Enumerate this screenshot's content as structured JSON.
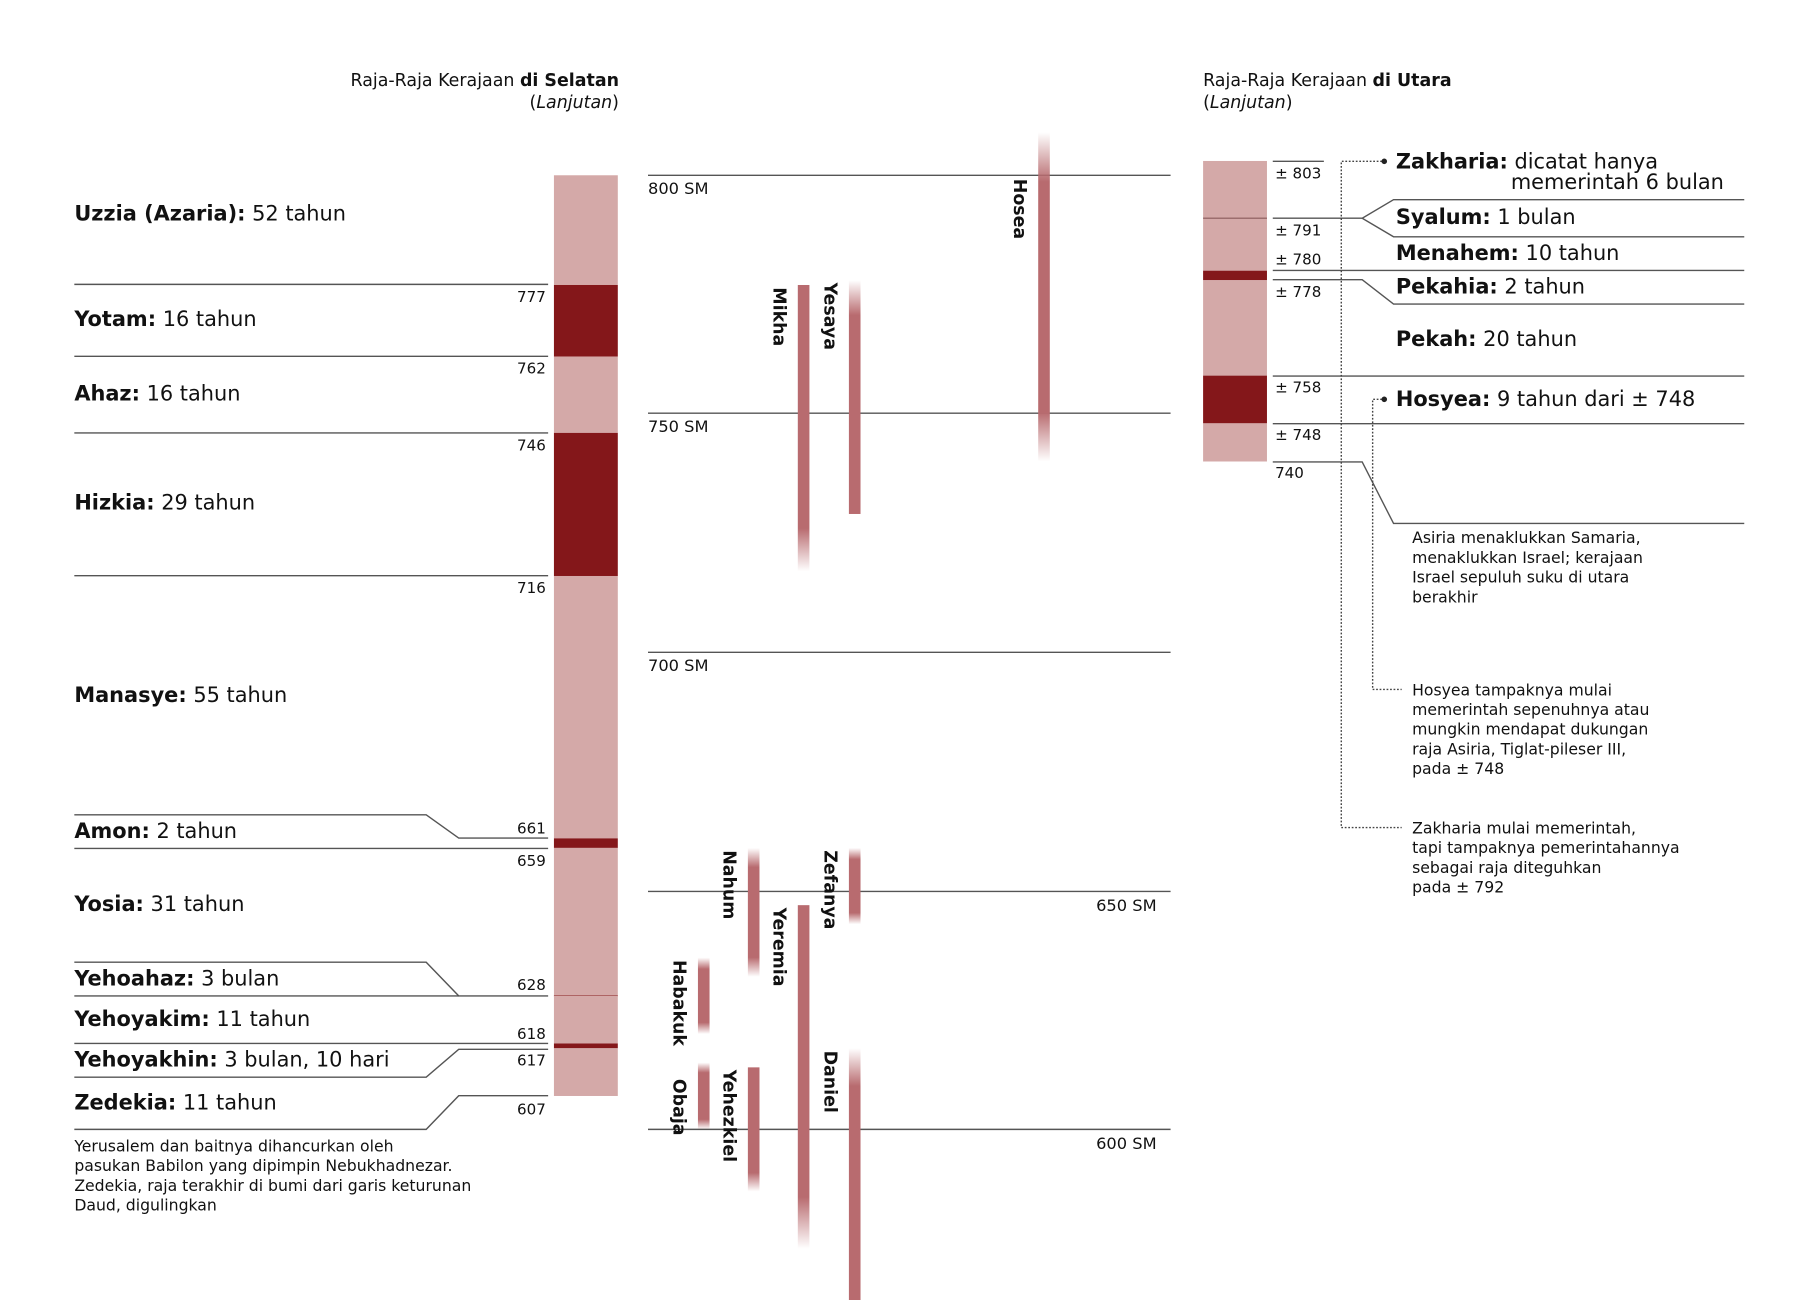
{
  "colors": {
    "light": "#d4a9a8",
    "dark": "#84171a",
    "prophet": "#b86b6f",
    "line": "#555555"
  },
  "south": {
    "title_plain": "Raja-Raja Kerajaan ",
    "title_bold": "di Selatan",
    "subtitle_open": "(",
    "subtitle_italic": "Lanjutan",
    "subtitle_close": ")",
    "kings": [
      {
        "name": "Uzzia (Azaria):",
        "reign": " 52 tahun",
        "start": 800,
        "end": 777,
        "shade": "light"
      },
      {
        "name": "Yotam:",
        "reign": " 16 tahun",
        "start": 777,
        "end": 762,
        "shade": "dark"
      },
      {
        "name": "Ahaz:",
        "reign": " 16 tahun",
        "start": 762,
        "end": 746,
        "shade": "light"
      },
      {
        "name": "Hizkia:",
        "reign": " 29 tahun",
        "start": 746,
        "end": 716,
        "shade": "dark"
      },
      {
        "name": "Manasye:",
        "reign": " 55 tahun",
        "start": 716,
        "end": 661,
        "shade": "light"
      },
      {
        "name": "Amon:",
        "reign": " 2 tahun",
        "start": 661,
        "end": 659,
        "shade": "dark"
      },
      {
        "name": "Yosia:",
        "reign": " 31 tahun",
        "start": 659,
        "end": 628,
        "shade": "light"
      },
      {
        "name": "Yehoahaz:",
        "reign": " 3 bulan",
        "start": 628,
        "end": 628,
        "shade": "dark"
      },
      {
        "name": "Yehoyakim:",
        "reign": " 11 tahun",
        "start": 628,
        "end": 618,
        "shade": "light"
      },
      {
        "name": "Yehoyakhin:",
        "reign": " 3 bulan, 10 hari",
        "start": 618,
        "end": 617,
        "shade": "dark"
      },
      {
        "name": "Zedekia:",
        "reign": " 11 tahun",
        "start": 617,
        "end": 607,
        "shade": "light"
      }
    ],
    "year_labels": [
      "777",
      "762",
      "746",
      "716",
      "661",
      "659",
      "628",
      "618",
      "617",
      "607"
    ],
    "footnote": [
      "Yerusalem dan baitnya dihancurkan oleh",
      "pasukan Babilon yang dipimpin Nebukhadnezar.",
      "Zedekia, raja terakhir di bumi dari garis keturunan",
      "Daud, digulingkan"
    ]
  },
  "axis": {
    "labels": [
      "800 SM",
      "750 SM",
      "700 SM",
      "650 SM",
      "600 SM"
    ]
  },
  "chart_data": {
    "type": "timeline",
    "unit": "SM",
    "prophets": [
      {
        "name": "Hosea",
        "start": 809,
        "end": 740,
        "fade": "both"
      },
      {
        "name": "Mikha",
        "start": 777,
        "end": 717,
        "fade": "bottom"
      },
      {
        "name": "Yesaya",
        "start": 778,
        "end": 729,
        "fade": "top"
      },
      {
        "name": "Nahum",
        "start": 659,
        "end": 632,
        "fade": "both"
      },
      {
        "name": "Zefanya",
        "start": 659,
        "end": 643,
        "fade": "both"
      },
      {
        "name": "Yeremia",
        "start": 647,
        "end": 575,
        "fade": "bottom"
      },
      {
        "name": "Habakuk",
        "start": 636,
        "end": 620,
        "fade": "both"
      },
      {
        "name": "Obaja",
        "start": 614,
        "end": 600,
        "fade": "both"
      },
      {
        "name": "Yehezkiel",
        "start": 613,
        "end": 587,
        "fade": "bottom"
      },
      {
        "name": "Daniel",
        "start": 617,
        "end": 560,
        "fade": "top"
      }
    ]
  },
  "north": {
    "title_plain": "Raja-Raja Kerajaan ",
    "title_bold": "di Utara",
    "subtitle_open": "(",
    "subtitle_italic": "Lanjutan",
    "subtitle_close": ")",
    "segments": [
      {
        "start": 803,
        "end": 791,
        "shade": "light"
      },
      {
        "start": 791,
        "end": 780,
        "shade": "light"
      },
      {
        "start": 780,
        "end": 778,
        "shade": "dark"
      },
      {
        "start": 778,
        "end": 758,
        "shade": "light"
      },
      {
        "start": 758,
        "end": 748,
        "shade": "dark"
      },
      {
        "start": 748,
        "end": 740,
        "shade": "light"
      }
    ],
    "kings": [
      {
        "name": "Zakharia:",
        "reign": " dicatat hanya",
        "reign_line2": "memerintah 6 bulan"
      },
      {
        "name": "Syalum:",
        "reign": " 1 bulan"
      },
      {
        "name": "Menahem:",
        "reign": " 10 tahun"
      },
      {
        "name": "Pekahia:",
        "reign": " 2 tahun"
      },
      {
        "name": "Pekah:",
        "reign": " 20 tahun"
      },
      {
        "name": "Hosyea:",
        "reign": " 9 tahun dari ± 748"
      }
    ],
    "year_labels": [
      "± 803",
      "± 791",
      "± 780",
      "± 778",
      "± 758",
      "± 748",
      "740"
    ],
    "notes": [
      [
        "Asiria menaklukkan Samaria,",
        "menaklukkan Israel; kerajaan",
        "Israel sepuluh suku di utara",
        "berakhir"
      ],
      [
        "Hosyea tampaknya mulai",
        "memerintah sepenuhnya atau",
        "mungkin mendapat dukungan",
        "raja Asiria, Tiglat-pileser III,",
        "pada ± 748"
      ],
      [
        "Zakharia mulai memerintah,",
        "tapi tampaknya pemerintahannya",
        "sebagai raja diteguhkan",
        "pada ± 792"
      ]
    ]
  }
}
